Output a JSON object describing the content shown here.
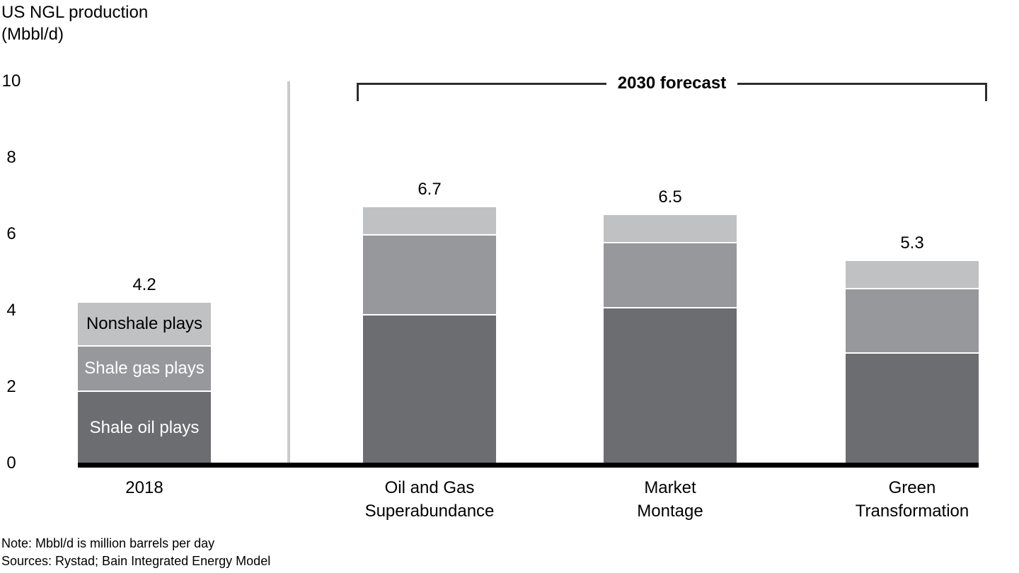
{
  "header": {
    "title_line1": "US NGL production",
    "title_line2": "(Mbbl/d)"
  },
  "forecast_label": "2030 forecast",
  "notes": {
    "note": "Note: Mbbl/d is million barrels per day",
    "sources": "Sources: Rystad; Bain Integrated Energy Model"
  },
  "colors": {
    "shale_oil": "#6c6d70",
    "shale_gas": "#96989b",
    "nonshale": "#bfc1c3",
    "divider": "#c9cacb",
    "axis": "#000000",
    "bracket": "#2d2e2e"
  },
  "chart_data": {
    "type": "bar",
    "stacked": true,
    "title": "US NGL production",
    "ylabel": "US NGL production (Mbbl/d)",
    "xlabel": "",
    "categories": [
      "2018",
      "Oil and Gas Superabundance",
      "Market Montage",
      "Green Transformation"
    ],
    "category_label_lines": [
      [
        "2018"
      ],
      [
        "Oil and Gas",
        "Superabundance"
      ],
      [
        "Market",
        "Montage"
      ],
      [
        "Green",
        "Transformation"
      ]
    ],
    "series": [
      {
        "name": "Shale oil plays",
        "values": [
          1.9,
          3.9,
          4.1,
          2.9
        ],
        "color": "#6c6d70",
        "label_color": "#ffffff"
      },
      {
        "name": "Shale gas plays",
        "values": [
          1.2,
          2.1,
          1.7,
          1.7
        ],
        "color": "#96989b",
        "label_color": "#ffffff"
      },
      {
        "name": "Nonshale plays",
        "values": [
          1.1,
          0.7,
          0.7,
          0.7
        ],
        "color": "#bfc1c3",
        "label_color": "#000000"
      }
    ],
    "totals": [
      4.2,
      6.7,
      6.5,
      5.3
    ],
    "totals_display": [
      "4.2",
      "6.7",
      "6.5",
      "5.3"
    ],
    "y_ticks": [
      0,
      2,
      4,
      6,
      8,
      10
    ],
    "ylim": [
      0,
      10
    ],
    "grid": false,
    "legend": "series-names-shown-inside-first-bar",
    "annotation": {
      "text": "2030 forecast",
      "applies_to": [
        "Oil and Gas Superabundance",
        "Market Montage",
        "Green Transformation"
      ]
    }
  }
}
